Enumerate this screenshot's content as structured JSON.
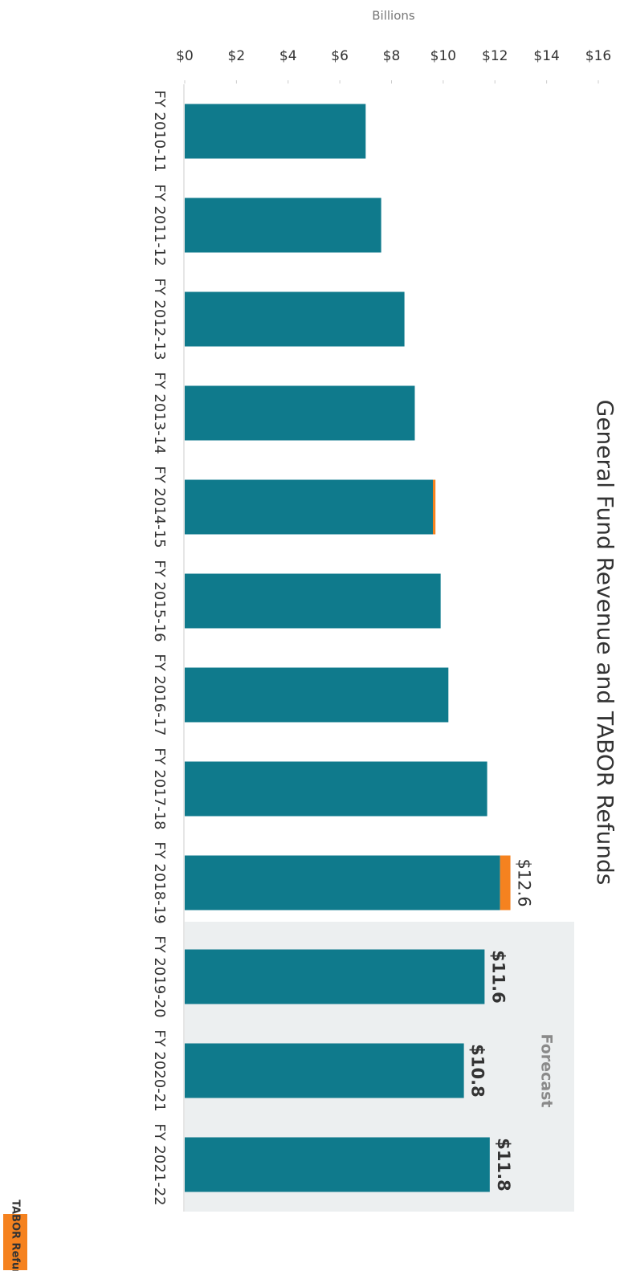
{
  "chart_data": {
    "type": "bar",
    "stacked": true,
    "title": "General Fund Revenue and TABOR Refunds",
    "y_label": "Billions",
    "categories": [
      "FY 2010-11",
      "FY 2011-12",
      "FY 2012-13",
      "FY 2013-14",
      "FY 2014-15",
      "FY 2015-16",
      "FY 2016-17",
      "FY 2017-18",
      "FY 2018-19",
      "FY 2019-20",
      "FY 2020-21",
      "FY 2021-22"
    ],
    "series": [
      {
        "color": "#0f7a8c",
        "values": [
          7.0,
          7.6,
          8.5,
          8.9,
          9.6,
          9.9,
          10.2,
          11.7,
          12.2,
          11.6,
          10.8,
          11.8
        ],
        "value_labels": [
          null,
          null,
          null,
          null,
          null,
          null,
          null,
          null,
          null,
          "$11.6",
          "$10.8",
          "$11.8"
        ]
      },
      {
        "name": "TABOR Refund",
        "color": "#f5821f",
        "values": [
          0,
          0,
          0,
          0,
          0.1,
          0,
          0,
          0,
          0.4,
          0,
          0,
          0
        ]
      }
    ],
    "total_label": {
      "category": "FY 2018-19",
      "text": "$12.6"
    },
    "forecast": {
      "label": "Forecast",
      "start": "FY 2019-20",
      "color": "#eceff0"
    },
    "ylim": [
      0,
      16
    ],
    "yticks": [
      {
        "value": 0,
        "label": "$0"
      },
      {
        "value": 2,
        "label": "$2"
      },
      {
        "value": 4,
        "label": "$4"
      },
      {
        "value": 6,
        "label": "$6"
      },
      {
        "value": 8,
        "label": "$8"
      },
      {
        "value": 10,
        "label": "$10"
      },
      {
        "value": 12,
        "label": "$12"
      },
      {
        "value": 14,
        "label": "$14"
      },
      {
        "value": 16,
        "label": "$16"
      }
    ],
    "grid": false
  }
}
